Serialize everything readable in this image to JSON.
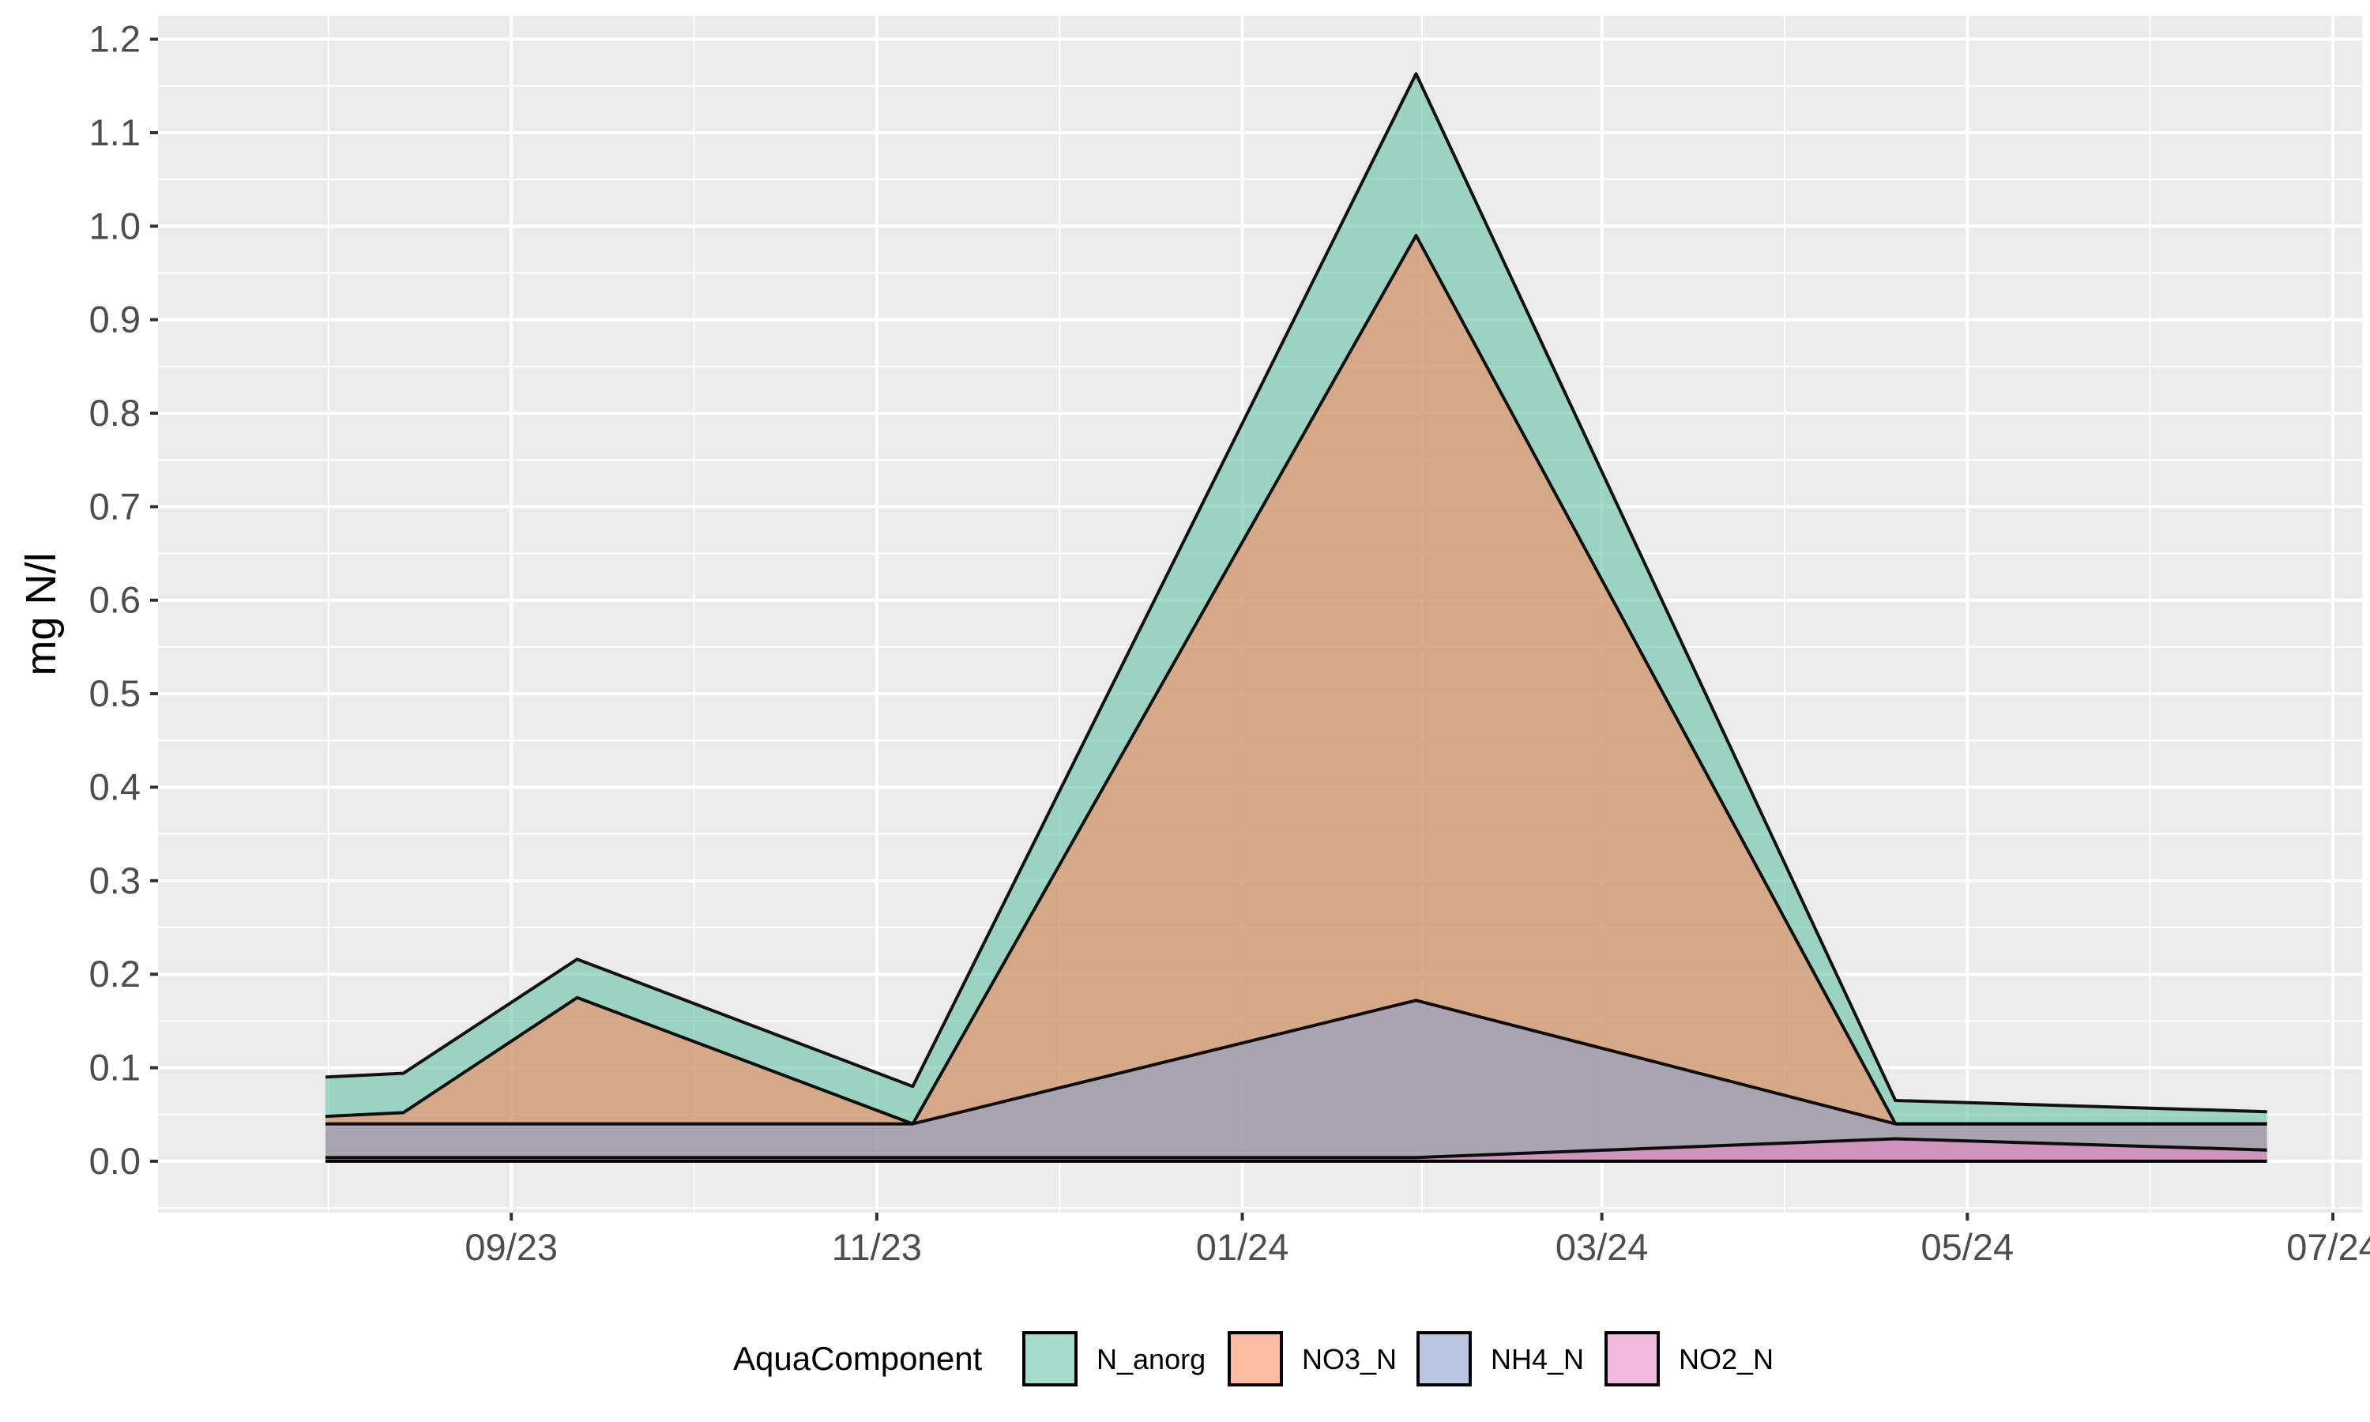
{
  "chart_data": {
    "type": "area",
    "title": "",
    "xlabel": "",
    "ylabel": "mg N/l",
    "x_axis": {
      "ticks": [
        "09/23",
        "11/23",
        "01/24",
        "03/24",
        "05/24",
        "07/24"
      ],
      "tick_dates": [
        "2023-09-01",
        "2023-11-01",
        "2024-01-01",
        "2024-03-01",
        "2024-05-01",
        "2024-07-01"
      ],
      "range": [
        "2023-07-08",
        "2024-07-01"
      ]
    },
    "y_axis": {
      "ticks": [
        "0.0",
        "0.1",
        "0.2",
        "0.3",
        "0.4",
        "0.5",
        "0.6",
        "0.7",
        "0.8",
        "0.9",
        "1.0",
        "1.1",
        "1.2"
      ],
      "ylim": [
        -0.055,
        1.225
      ]
    },
    "grid": true,
    "background": "#ebebeb",
    "x": [
      "2023-08-01",
      "2023-08-14",
      "2023-09-12",
      "2023-11-07",
      "2024-01-30",
      "2024-04-19",
      "2024-06-20"
    ],
    "series": [
      {
        "name": "N_anorg",
        "color": "#66c2a5",
        "values": [
          0.09,
          0.094,
          0.216,
          0.08,
          1.163,
          0.065,
          0.053
        ]
      },
      {
        "name": "NO3_N",
        "color": "#fc8d62",
        "values": [
          0.048,
          0.052,
          0.175,
          0.04,
          0.99,
          0.04,
          0.04
        ]
      },
      {
        "name": "NH4_N",
        "color": "#8da0cb",
        "values": [
          0.04,
          0.04,
          0.04,
          0.04,
          0.172,
          0.04,
          0.04
        ]
      },
      {
        "name": "NO2_N",
        "color": "#e78ac3",
        "values": [
          0.004,
          0.004,
          0.004,
          0.004,
          0.004,
          0.024,
          0.012
        ]
      }
    ],
    "legend": {
      "title": "AquaComponent",
      "position": "bottom"
    }
  }
}
